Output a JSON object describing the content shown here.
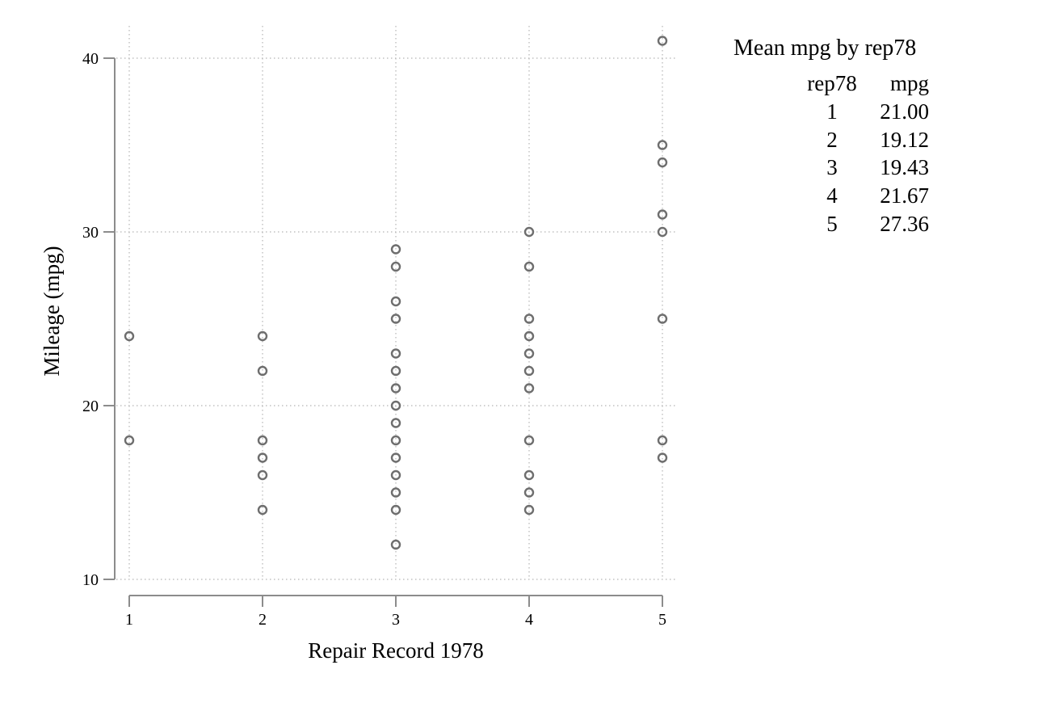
{
  "chart_data": {
    "type": "scatter",
    "xlabel": "Repair Record 1978",
    "ylabel": "Mileage (mpg)",
    "xlim": [
      1,
      5
    ],
    "ylim": [
      10,
      41
    ],
    "xticks": [
      "1",
      "2",
      "3",
      "4",
      "5"
    ],
    "yticks": [
      "10",
      "20",
      "30",
      "40"
    ],
    "grid": true,
    "marker": "hollow-circle",
    "marker_color": "#6e6e6e",
    "points": [
      [
        1,
        24
      ],
      [
        1,
        18
      ],
      [
        2,
        24
      ],
      [
        2,
        22
      ],
      [
        2,
        18
      ],
      [
        2,
        17
      ],
      [
        2,
        16
      ],
      [
        2,
        14
      ],
      [
        3,
        29
      ],
      [
        3,
        28
      ],
      [
        3,
        26
      ],
      [
        3,
        25
      ],
      [
        3,
        23
      ],
      [
        3,
        22
      ],
      [
        3,
        21
      ],
      [
        3,
        20
      ],
      [
        3,
        19
      ],
      [
        3,
        18
      ],
      [
        3,
        17
      ],
      [
        3,
        16
      ],
      [
        3,
        15
      ],
      [
        3,
        14
      ],
      [
        3,
        12
      ],
      [
        4,
        30
      ],
      [
        4,
        28
      ],
      [
        4,
        25
      ],
      [
        4,
        24
      ],
      [
        4,
        23
      ],
      [
        4,
        22
      ],
      [
        4,
        21
      ],
      [
        4,
        18
      ],
      [
        4,
        16
      ],
      [
        4,
        15
      ],
      [
        4,
        14
      ],
      [
        5,
        41
      ],
      [
        5,
        35
      ],
      [
        5,
        34
      ],
      [
        5,
        31
      ],
      [
        5,
        30
      ],
      [
        5,
        25
      ],
      [
        5,
        18
      ],
      [
        5,
        17
      ]
    ]
  },
  "summary": {
    "title": "Mean mpg by rep78",
    "headers": [
      "rep78",
      "mpg"
    ],
    "rows": [
      [
        "1",
        "21.00"
      ],
      [
        "2",
        "19.12"
      ],
      [
        "3",
        "19.43"
      ],
      [
        "4",
        "21.67"
      ],
      [
        "5",
        "27.36"
      ]
    ]
  }
}
